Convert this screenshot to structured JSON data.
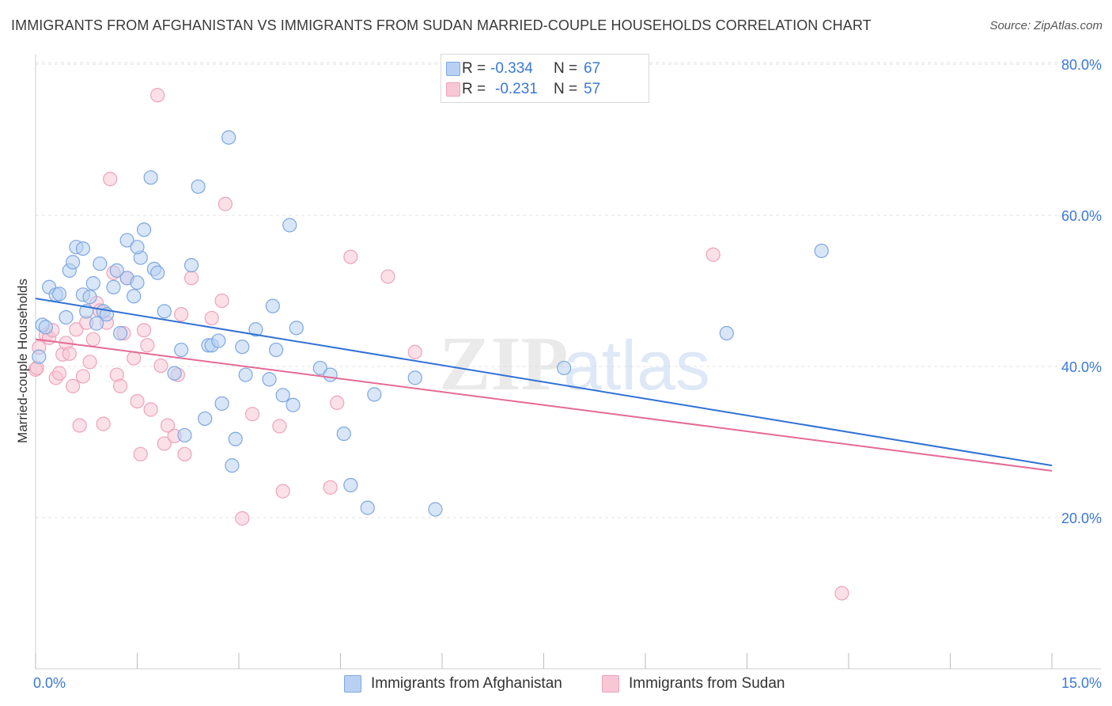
{
  "title": "IMMIGRANTS FROM AFGHANISTAN VS IMMIGRANTS FROM SUDAN MARRIED-COUPLE HOUSEHOLDS CORRELATION CHART",
  "source": "Source: ZipAtlas.com",
  "watermark": {
    "part1": "ZIP",
    "part2": "atlas"
  },
  "legend": {
    "r_label": "R =",
    "n_label": "N =",
    "entries": [
      {
        "r": "-0.334",
        "n": "67"
      },
      {
        "r": "-0.231",
        "n": "57"
      }
    ]
  },
  "colors": {
    "afghanistan_fill": "#b8d1f3",
    "afghanistan_stroke": "#7ea7e0",
    "afghanistan_line": "#3071d4",
    "sudan_fill": "#f7c7d6",
    "sudan_stroke": "#eda3bb",
    "sudan_line": "#e46a96",
    "tick_label": "#3b78d8"
  },
  "chart_data": {
    "type": "scatter",
    "title": "IMMIGRANTS FROM AFGHANISTAN VS IMMIGRANTS FROM SUDAN MARRIED-COUPLE HOUSEHOLDS CORRELATION CHART",
    "xlabel": "",
    "ylabel": "Married-couple Households",
    "xlim": [
      0,
      15
    ],
    "ylim": [
      0,
      82
    ],
    "x_tick_labels": [
      "0.0%",
      "15.0%"
    ],
    "y_ticks": [
      20,
      40,
      60,
      80
    ],
    "y_tick_labels": [
      "20.0%",
      "40.0%",
      "60.0%",
      "80.0%"
    ],
    "grid": true,
    "legend_position": "top-center",
    "series": [
      {
        "name": "Immigrants from Afghanistan",
        "trend": {
          "x": [
            0,
            15
          ],
          "y": [
            49.0,
            26.9
          ]
        },
        "points": [
          [
            0.1,
            45.5
          ],
          [
            0.15,
            45.2
          ],
          [
            0.2,
            50.5
          ],
          [
            0.3,
            49.5
          ],
          [
            0.35,
            49.6
          ],
          [
            0.45,
            46.5
          ],
          [
            0.5,
            52.7
          ],
          [
            0.55,
            53.8
          ],
          [
            0.6,
            55.8
          ],
          [
            0.7,
            49.5
          ],
          [
            0.75,
            47.3
          ],
          [
            0.8,
            49.2
          ],
          [
            0.85,
            51.0
          ],
          [
            0.9,
            45.7
          ],
          [
            0.95,
            53.6
          ],
          [
            1.0,
            47.3
          ],
          [
            1.05,
            46.9
          ],
          [
            1.15,
            50.5
          ],
          [
            1.2,
            52.7
          ],
          [
            1.25,
            44.4
          ],
          [
            1.35,
            56.7
          ],
          [
            1.35,
            51.7
          ],
          [
            1.45,
            49.3
          ],
          [
            1.5,
            51.1
          ],
          [
            1.55,
            54.4
          ],
          [
            1.6,
            58.1
          ],
          [
            1.7,
            65.0
          ],
          [
            1.75,
            52.9
          ],
          [
            1.8,
            52.4
          ],
          [
            1.9,
            47.3
          ],
          [
            2.05,
            39.1
          ],
          [
            2.15,
            42.2
          ],
          [
            2.2,
            30.9
          ],
          [
            2.3,
            53.4
          ],
          [
            2.4,
            63.8
          ],
          [
            2.5,
            33.1
          ],
          [
            2.55,
            42.8
          ],
          [
            2.6,
            42.8
          ],
          [
            2.7,
            43.4
          ],
          [
            2.75,
            35.1
          ],
          [
            2.85,
            70.3
          ],
          [
            2.9,
            26.9
          ],
          [
            2.95,
            30.4
          ],
          [
            3.05,
            42.6
          ],
          [
            3.1,
            38.9
          ],
          [
            3.25,
            44.9
          ],
          [
            3.45,
            38.3
          ],
          [
            3.5,
            48.0
          ],
          [
            3.55,
            42.2
          ],
          [
            3.65,
            36.2
          ],
          [
            3.75,
            58.7
          ],
          [
            3.8,
            34.9
          ],
          [
            3.85,
            45.1
          ],
          [
            4.2,
            39.8
          ],
          [
            4.35,
            38.9
          ],
          [
            4.55,
            31.1
          ],
          [
            4.65,
            24.3
          ],
          [
            4.9,
            21.3
          ],
          [
            5.0,
            36.3
          ],
          [
            5.6,
            38.5
          ],
          [
            5.9,
            21.1
          ],
          [
            7.8,
            39.8
          ],
          [
            10.2,
            44.4
          ],
          [
            11.6,
            55.3
          ],
          [
            0.05,
            41.3
          ],
          [
            0.7,
            55.6
          ],
          [
            1.5,
            55.8
          ]
        ]
      },
      {
        "name": "Immigrants from Sudan",
        "trend": {
          "x": [
            0,
            15
          ],
          "y": [
            43.6,
            26.2
          ]
        },
        "points": [
          [
            0.0,
            39.6
          ],
          [
            0.05,
            42.5
          ],
          [
            0.15,
            44.2
          ],
          [
            0.2,
            43.8
          ],
          [
            0.25,
            44.8
          ],
          [
            0.3,
            38.5
          ],
          [
            0.35,
            39.1
          ],
          [
            0.4,
            41.6
          ],
          [
            0.45,
            43.1
          ],
          [
            0.5,
            41.7
          ],
          [
            0.55,
            37.4
          ],
          [
            0.6,
            44.9
          ],
          [
            0.65,
            32.2
          ],
          [
            0.7,
            38.7
          ],
          [
            0.75,
            45.8
          ],
          [
            0.8,
            40.6
          ],
          [
            0.85,
            43.6
          ],
          [
            0.9,
            48.4
          ],
          [
            0.95,
            47.4
          ],
          [
            1.0,
            32.4
          ],
          [
            1.05,
            45.8
          ],
          [
            1.1,
            64.8
          ],
          [
            1.15,
            52.4
          ],
          [
            1.2,
            38.9
          ],
          [
            1.25,
            37.4
          ],
          [
            1.3,
            44.4
          ],
          [
            1.35,
            51.7
          ],
          [
            1.45,
            41.1
          ],
          [
            1.5,
            35.4
          ],
          [
            1.55,
            28.4
          ],
          [
            1.6,
            44.8
          ],
          [
            1.65,
            42.8
          ],
          [
            1.7,
            34.3
          ],
          [
            1.8,
            75.9
          ],
          [
            1.85,
            40.1
          ],
          [
            1.9,
            29.8
          ],
          [
            1.95,
            32.2
          ],
          [
            2.05,
            30.8
          ],
          [
            2.1,
            38.9
          ],
          [
            2.15,
            46.9
          ],
          [
            2.2,
            28.4
          ],
          [
            2.3,
            51.7
          ],
          [
            2.6,
            46.4
          ],
          [
            2.75,
            48.7
          ],
          [
            2.8,
            61.5
          ],
          [
            3.05,
            19.9
          ],
          [
            3.2,
            33.7
          ],
          [
            3.6,
            32.1
          ],
          [
            3.65,
            23.5
          ],
          [
            4.35,
            24.0
          ],
          [
            4.45,
            35.2
          ],
          [
            4.65,
            54.5
          ],
          [
            5.2,
            51.9
          ],
          [
            5.6,
            41.9
          ],
          [
            10.0,
            54.8
          ],
          [
            11.9,
            10.0
          ],
          [
            0.02,
            39.8
          ]
        ]
      }
    ]
  },
  "bottom_legend": {
    "afghanistan": "Immigrants from Afghanistan",
    "sudan": "Immigrants from Sudan"
  }
}
